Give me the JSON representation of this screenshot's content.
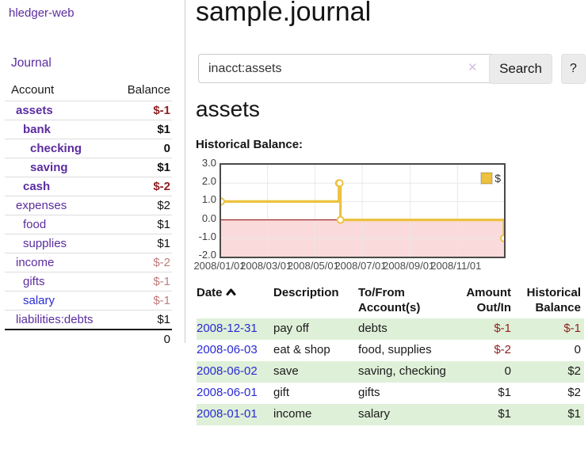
{
  "app": {
    "title_link": "hledger-web",
    "nav_journal": "Journal"
  },
  "sidebar": {
    "accounts_header": {
      "account": "Account",
      "balance": "Balance"
    },
    "accounts": [
      {
        "name": "assets",
        "depth": 0,
        "bold": true,
        "balance": "$-1",
        "balance_class": "neg"
      },
      {
        "name": "bank",
        "depth": 1,
        "bold": true,
        "balance": "$1",
        "balance_class": "amt"
      },
      {
        "name": "checking",
        "depth": 2,
        "bold": true,
        "balance": "0",
        "balance_class": "amt"
      },
      {
        "name": "saving",
        "depth": 2,
        "bold": true,
        "balance": "$1",
        "balance_class": "amt"
      },
      {
        "name": "cash",
        "depth": 1,
        "bold": true,
        "balance": "$-2",
        "balance_class": "neg"
      },
      {
        "name": "expenses",
        "depth": 0,
        "bold": false,
        "balance": "$2",
        "balance_class": "amt"
      },
      {
        "name": "food",
        "depth": 1,
        "bold": false,
        "balance": "$1",
        "balance_class": "amt"
      },
      {
        "name": "supplies",
        "depth": 1,
        "bold": false,
        "balance": "$1",
        "balance_class": "amt"
      },
      {
        "name": "income",
        "depth": 0,
        "bold": false,
        "balance": "$-2",
        "balance_class": "neg-soft"
      },
      {
        "name": "gifts",
        "depth": 1,
        "bold": false,
        "balance": "$-1",
        "balance_class": "neg-soft"
      },
      {
        "name": "salary",
        "depth": 1,
        "bold": false,
        "balance": "$-1",
        "balance_class": "neg-soft",
        "link_color": "blue"
      },
      {
        "name": "liabilities:debts",
        "depth": 0,
        "bold": false,
        "balance": "$1",
        "balance_class": "amt",
        "last": true
      }
    ],
    "total": "0"
  },
  "header": {
    "title": "sample.journal"
  },
  "search": {
    "value": "inacct:assets",
    "clear_icon": "✕",
    "button_label": "Search",
    "help_label": "?"
  },
  "account_page": {
    "heading": "assets",
    "chart_label": "Historical Balance:"
  },
  "chart_data": {
    "type": "line",
    "step": true,
    "title": "Historical Balance:",
    "series": [
      {
        "name": "$",
        "color": "#edc240",
        "points": [
          [
            "2008-01-01",
            1
          ],
          [
            "2008-06-01",
            2
          ],
          [
            "2008-06-02",
            2
          ],
          [
            "2008-06-03",
            0
          ],
          [
            "2008-12-31",
            -1
          ]
        ]
      }
    ],
    "x_range": [
      "2008-01-01",
      "2008-12-31"
    ],
    "x_ticks": [
      "2008/01/01",
      "2008/03/01",
      "2008/05/01",
      "2008/07/01",
      "2008/09/01",
      "2008/11/01"
    ],
    "y_ticks": [
      "3.0",
      "2.0",
      "1.0",
      "0.0",
      "-1.0",
      "-2.0"
    ],
    "ylim": [
      -2,
      3
    ],
    "legend": "$",
    "legend_position": "top-right",
    "grid": true,
    "negative_fill": "#fadada",
    "zero_line_color": "#8b0000"
  },
  "register": {
    "headers": [
      "Date",
      "Description",
      "To/From Account(s)",
      "Amount Out/In",
      "Historical Balance"
    ],
    "sort_icon": "chevron-up",
    "rows": [
      {
        "date": "2008-12-31",
        "description": "pay off",
        "accounts": "debts",
        "amount": "$-1",
        "amount_neg": true,
        "balance": "$-1",
        "balance_neg": true
      },
      {
        "date": "2008-06-03",
        "description": "eat & shop",
        "accounts": "food, supplies",
        "amount": "$-2",
        "amount_neg": true,
        "balance": "0",
        "balance_neg": false
      },
      {
        "date": "2008-06-02",
        "description": "save",
        "accounts": "saving, checking",
        "amount": "0",
        "amount_neg": false,
        "balance": "$2",
        "balance_neg": false
      },
      {
        "date": "2008-06-01",
        "description": "gift",
        "accounts": "gifts",
        "amount": "$1",
        "amount_neg": false,
        "balance": "$2",
        "balance_neg": false
      },
      {
        "date": "2008-01-01",
        "description": "income",
        "accounts": "salary",
        "amount": "$1",
        "amount_neg": false,
        "balance": "$1",
        "balance_neg": false
      }
    ]
  },
  "colors": {
    "purple_link": "#5b2ca0",
    "blue_link": "#2a2ad4",
    "negative": "#8f1f1f",
    "negative_soft": "#c27b7b",
    "row_green": "#dff0d8",
    "chart_series": "#edc240",
    "negative_region": "#fadada",
    "zero_line": "#8b0000"
  }
}
